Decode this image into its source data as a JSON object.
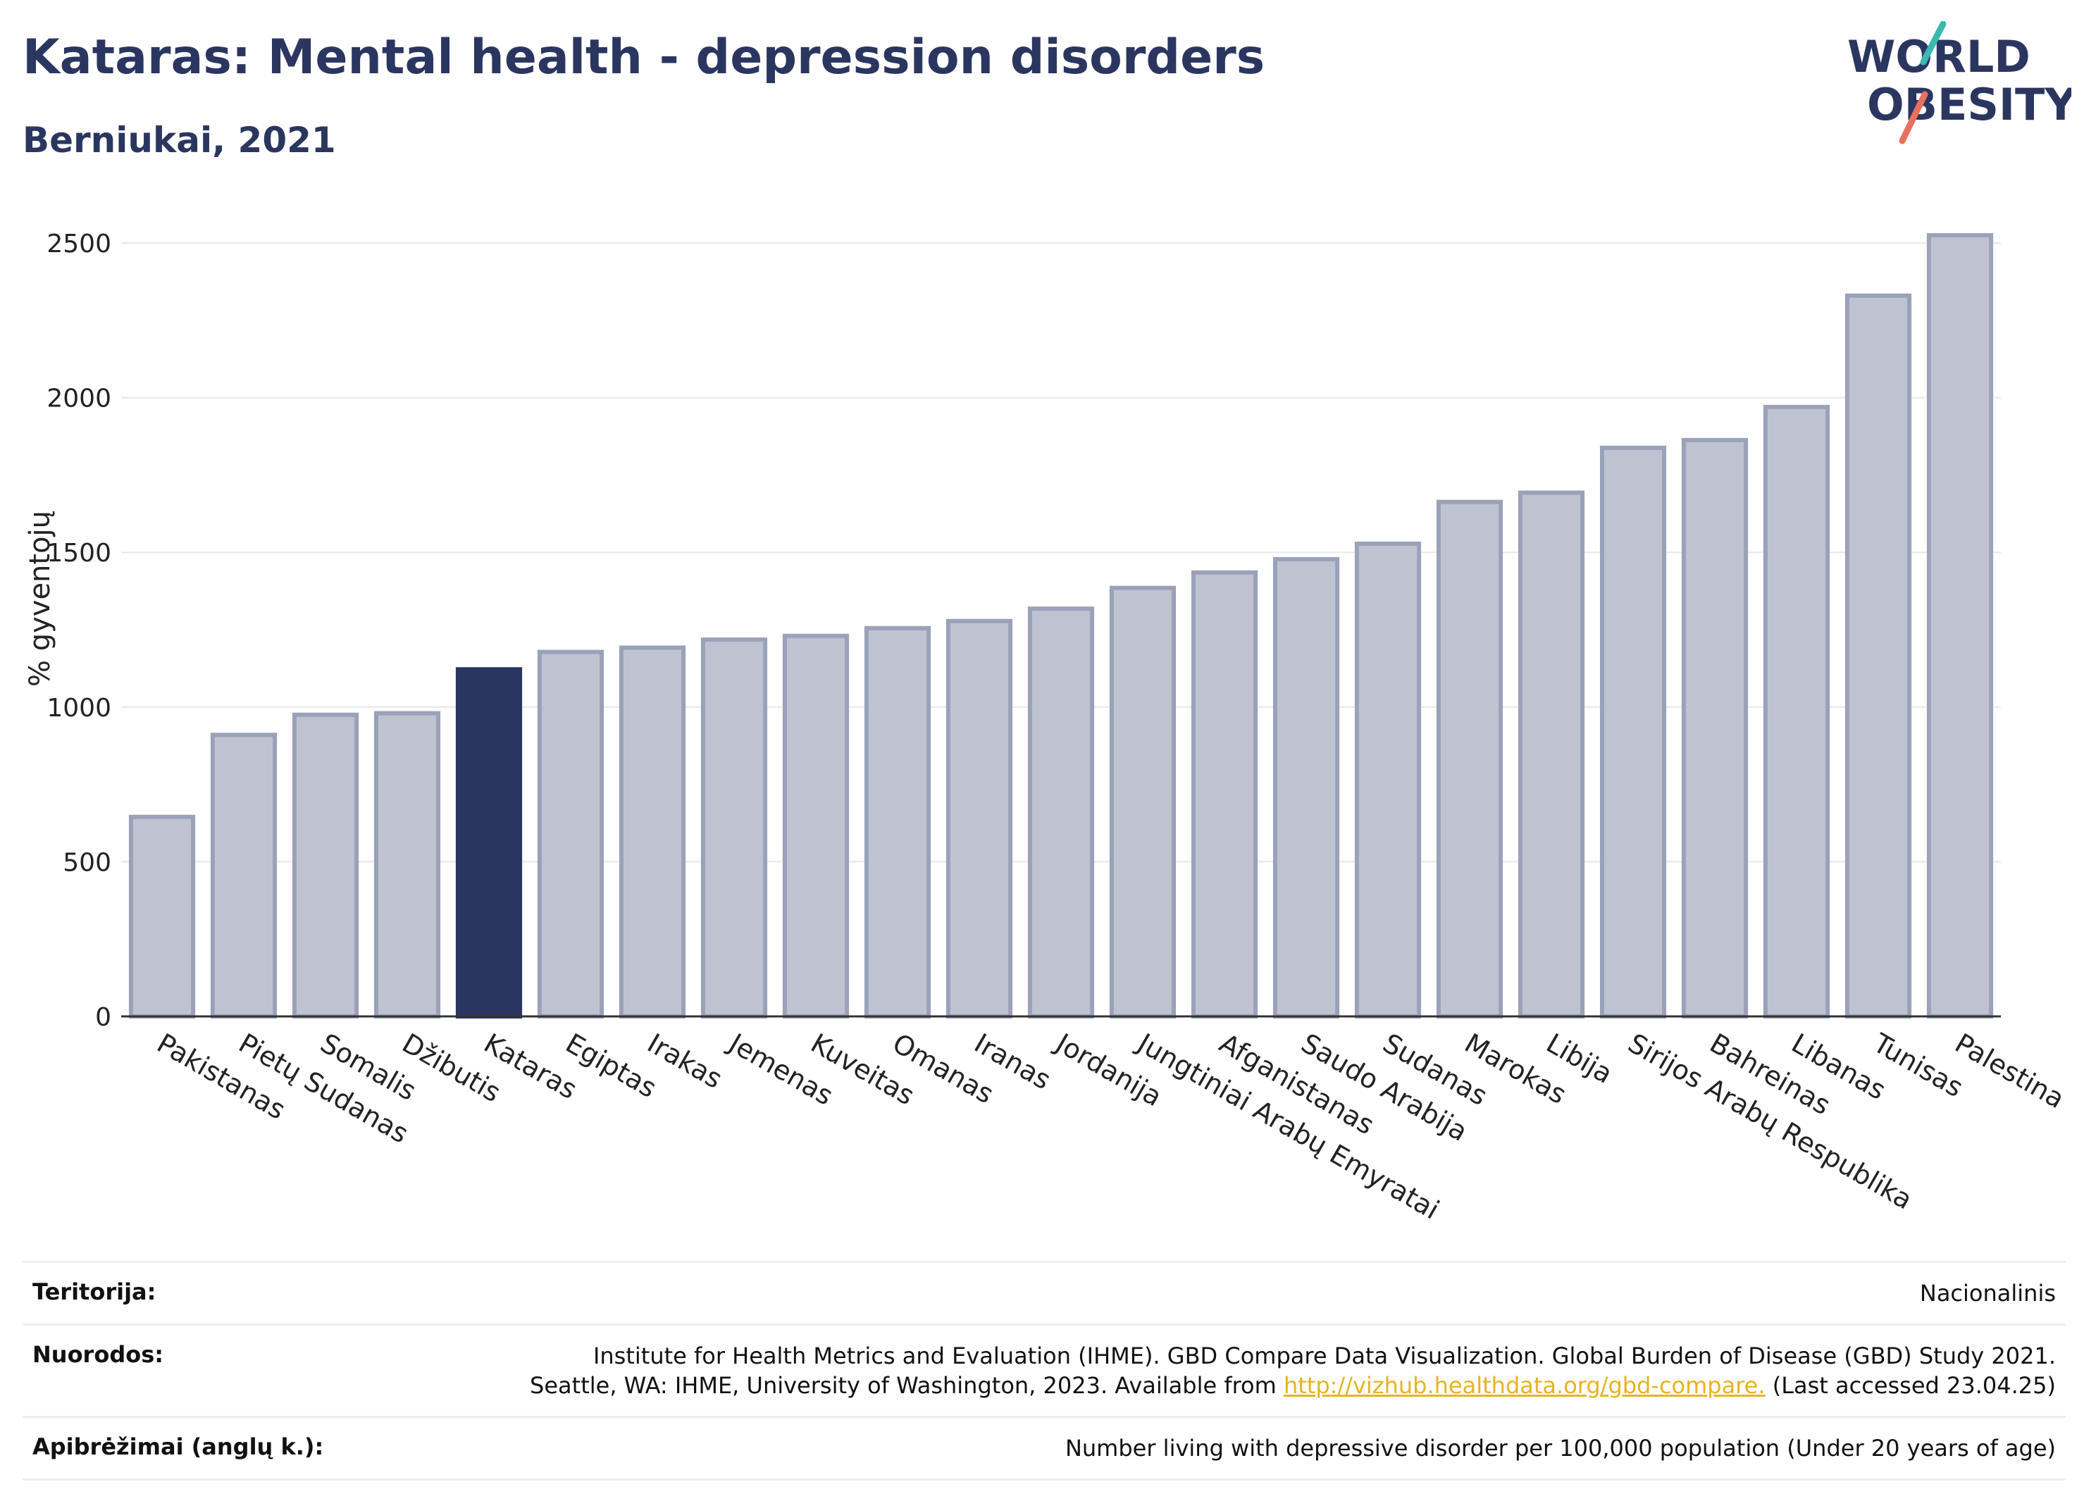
{
  "header": {
    "title": "Kataras: Mental health - depression disorders",
    "subtitle": "Berniukai, 2021"
  },
  "logo": {
    "line1": "WORLD",
    "line2": "OBESITY"
  },
  "chart_data": {
    "type": "bar",
    "title": "Kataras: Mental health - depression disorders",
    "subtitle": "Berniukai, 2021",
    "ylabel": "% gyventojų",
    "xlabel": "",
    "ylim": [
      0,
      2600
    ],
    "yticks": [
      0,
      500,
      1000,
      1500,
      2000,
      2500
    ],
    "grid": true,
    "highlight": "Kataras",
    "colors": {
      "bar": "#bfc3d1",
      "bar_border": "#9aa1b8",
      "highlight": "#2b3660"
    },
    "categories": [
      "Pakistanas",
      "Pietų Sudanas",
      "Somalis",
      "Džibutis",
      "Kataras",
      "Egiptas",
      "Irakas",
      "Jemenas",
      "Kuveitas",
      "Omanas",
      "Iranas",
      "Jordanija",
      "Jungtiniai Arabų Emyratai",
      "Afganistanas",
      "Saudo Arabija",
      "Sudanas",
      "Marokas",
      "Libija",
      "Sirijos Arabų Respublika",
      "Bahreinas",
      "Libanas",
      "Tunisas",
      "Palestina"
    ],
    "values": [
      645,
      910,
      975,
      980,
      1122,
      1178,
      1192,
      1218,
      1230,
      1255,
      1278,
      1318,
      1385,
      1435,
      1478,
      1528,
      1663,
      1693,
      1838,
      1863,
      1970,
      2330,
      2525
    ]
  },
  "footer": {
    "territory_label": "Teritorija:",
    "territory_value": "Nacionalinis",
    "refs_label": "Nuorodos:",
    "refs_line1": "Institute for Health Metrics and Evaluation (IHME). GBD Compare Data Visualization. Global Burden of Disease (GBD) Study 2021.",
    "refs_line2_pre": "Seattle, WA: IHME, University of Washington, 2023. Available from ",
    "refs_link": "http://vizhub.healthdata.org/gbd-compare.",
    "refs_line2_post": " (Last accessed 23.04.25)",
    "defs_label": "Apibrėžimai (anglų k.):",
    "defs_value": "Number living with depressive disorder per 100,000 population (Under 20 years of age)"
  }
}
